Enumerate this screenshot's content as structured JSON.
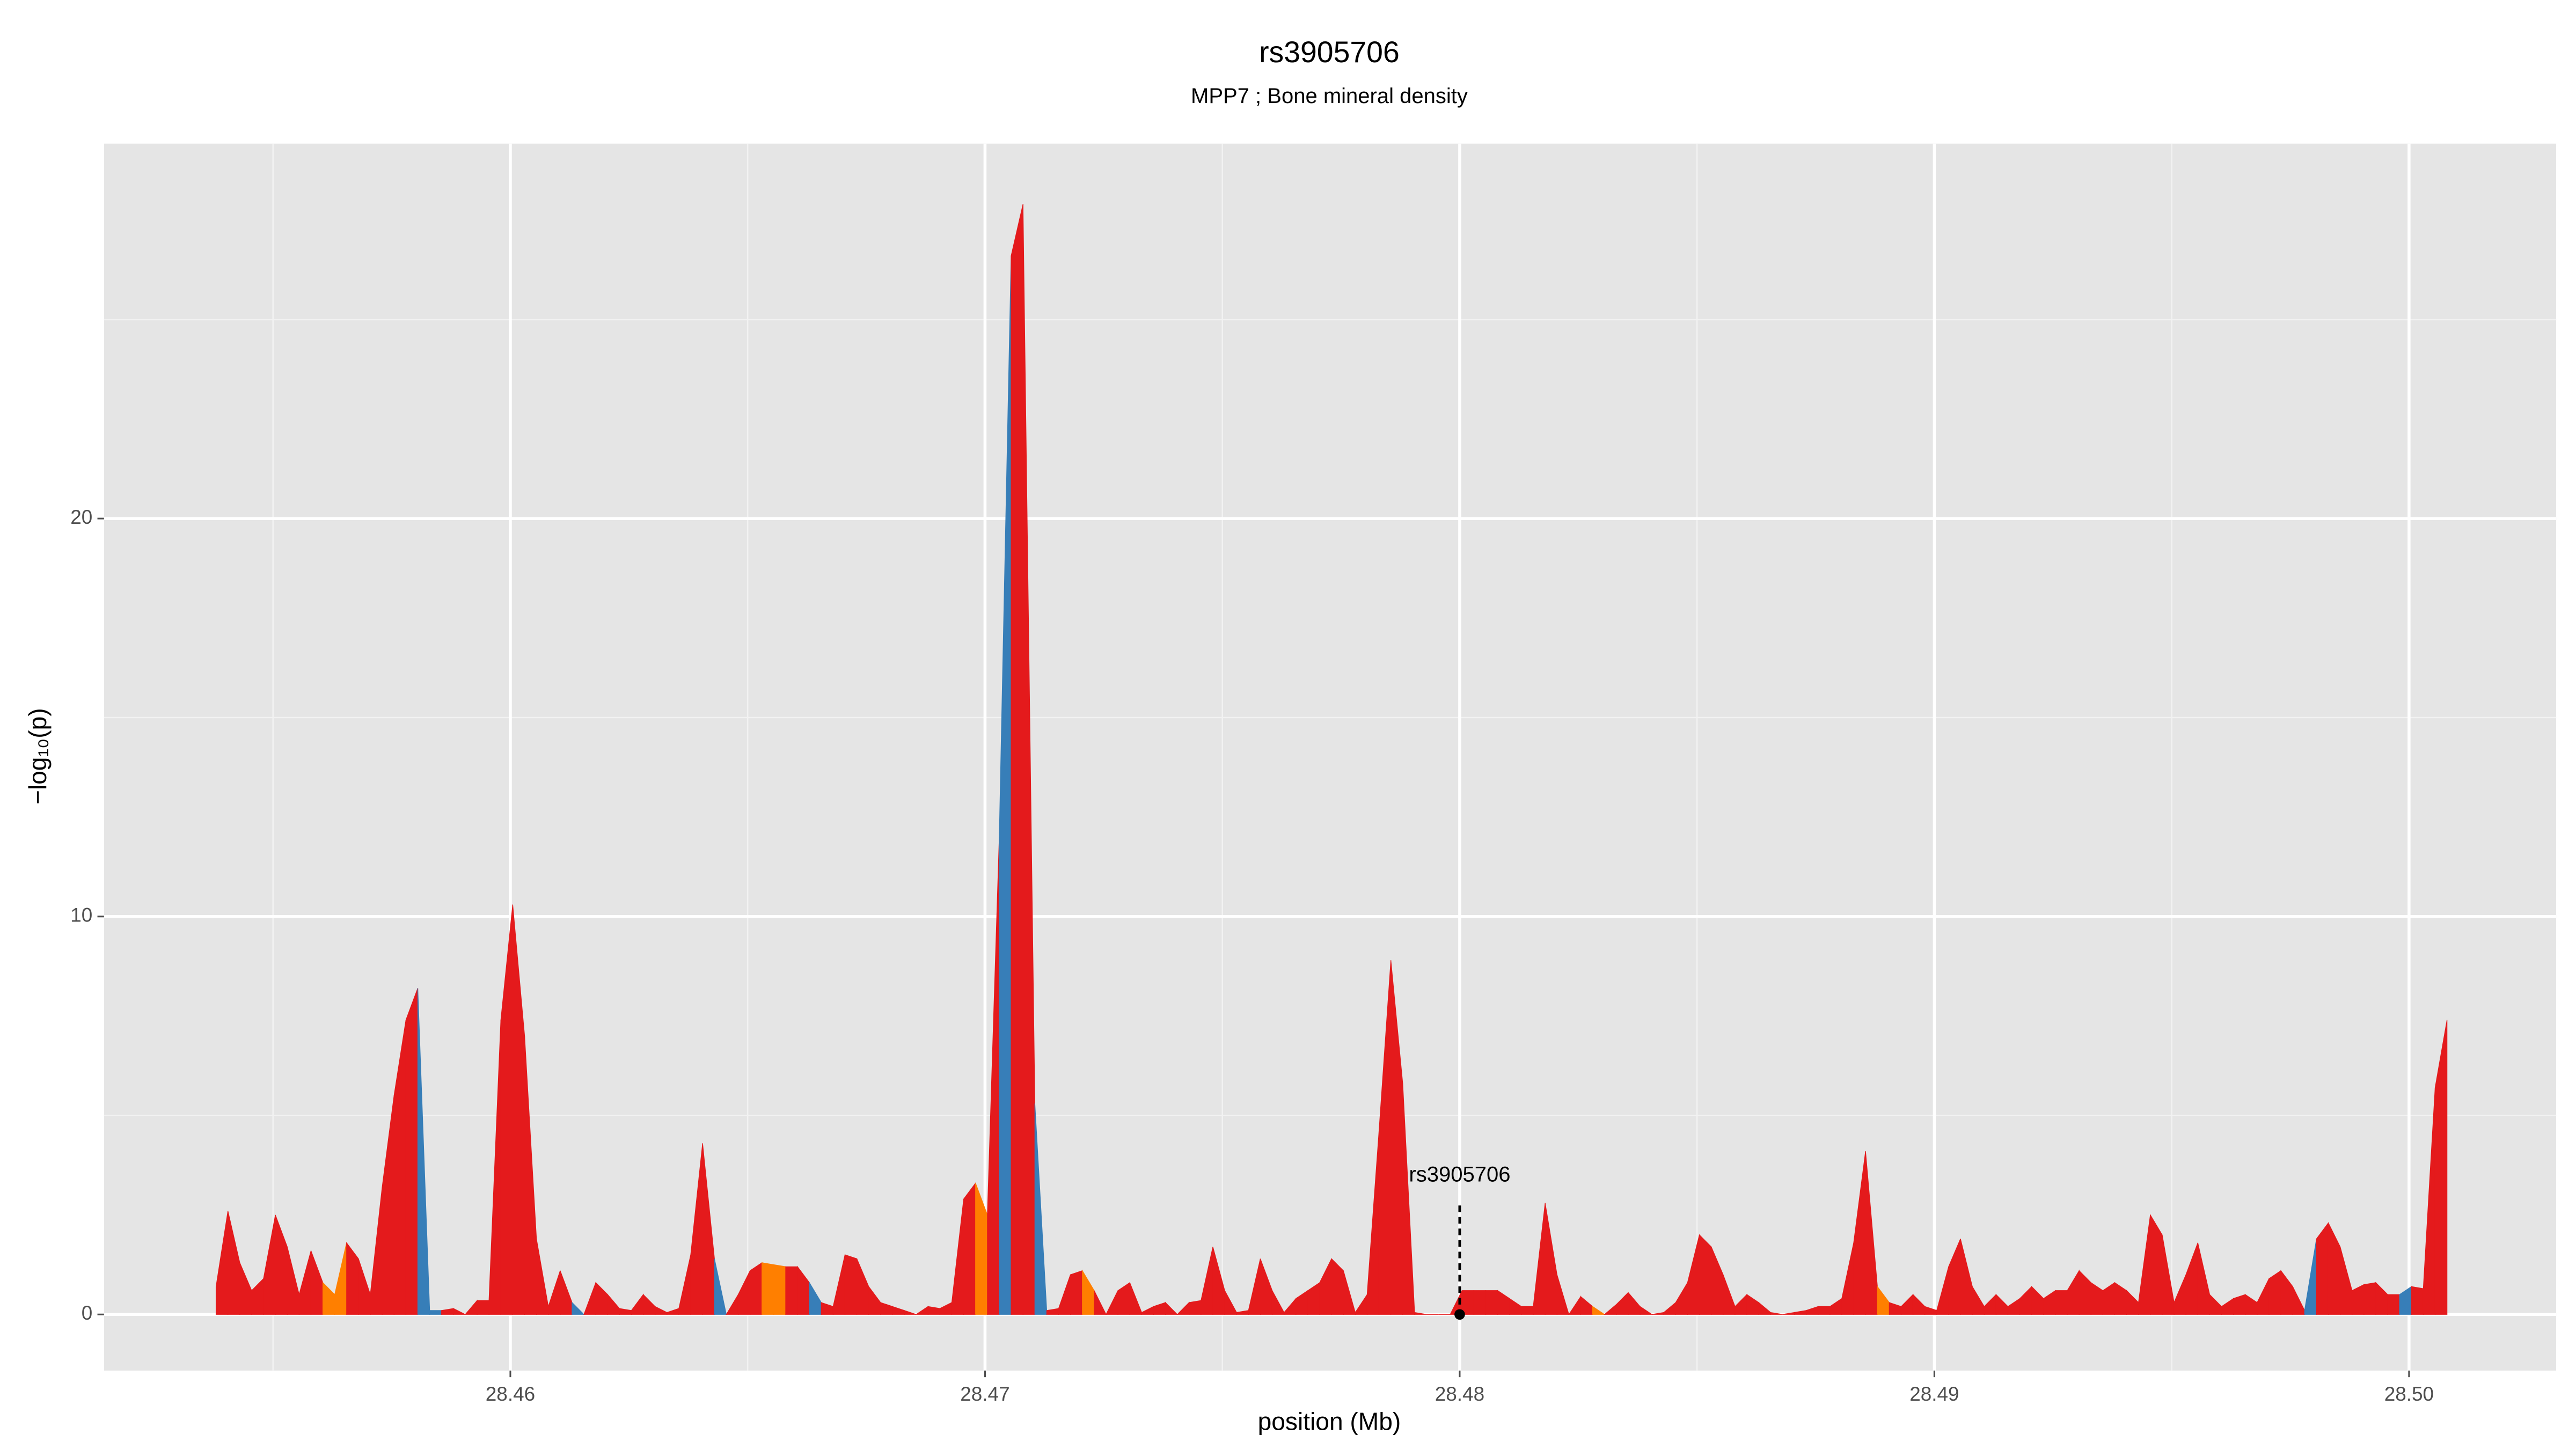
{
  "chart_data": {
    "type": "area",
    "title": "rs3905706",
    "subtitle": "MPP7 ; Bone mineral density",
    "x_label": "position (Mb)",
    "y_label": "−log₁₀(p)",
    "xlim": [
      28.45144,
      28.5031
    ],
    "ylim": [
      -1.41,
      29.42
    ],
    "xticks": [
      28.46,
      28.47,
      28.48,
      28.49,
      {
        "value": 28.5,
        "label": "28.50"
      }
    ],
    "yticks": [
      0,
      10,
      20
    ],
    "xminor": [
      28.455,
      28.465,
      28.475,
      28.485,
      28.495
    ],
    "yminor": [
      5,
      15,
      25
    ],
    "grid": true,
    "annotation": {
      "text": "rs3905706",
      "x": 28.48,
      "y": 0
    },
    "x": [
      28.4538,
      28.45405,
      28.4543,
      28.45455,
      28.4548,
      28.45505,
      28.4553,
      28.45555,
      28.4558,
      28.45605,
      28.4563,
      28.45655,
      28.4568,
      28.45705,
      28.4573,
      28.45755,
      28.4578,
      28.45805,
      28.4583,
      28.45855,
      28.4588,
      28.45905,
      28.4593,
      28.45955,
      28.4598,
      28.46005,
      28.4603,
      28.46055,
      28.4608,
      28.46105,
      28.4613,
      28.46155,
      28.4618,
      28.46205,
      28.4623,
      28.46255,
      28.4628,
      28.46305,
      28.4633,
      28.46355,
      28.4638,
      28.46405,
      28.4643,
      28.46455,
      28.4648,
      28.46505,
      28.4653,
      28.46555,
      28.4658,
      28.46605,
      28.4663,
      28.46655,
      28.4668,
      28.46705,
      28.4673,
      28.46755,
      28.4678,
      28.46805,
      28.4683,
      28.46855,
      28.4688,
      28.46905,
      28.4693,
      28.46955,
      28.4698,
      28.47005,
      28.4703,
      28.47055,
      28.4708,
      28.47105,
      28.4713,
      28.47155,
      28.4718,
      28.47205,
      28.4723,
      28.47255,
      28.4728,
      28.47305,
      28.4733,
      28.47355,
      28.4738,
      28.47405,
      28.4743,
      28.47455,
      28.4748,
      28.47505,
      28.4753,
      28.47555,
      28.4758,
      28.47605,
      28.4763,
      28.47655,
      28.4768,
      28.47705,
      28.4773,
      28.47755,
      28.4778,
      28.47805,
      28.4783,
      28.47855,
      28.4788,
      28.47905,
      28.4793,
      28.47955,
      28.4798,
      28.48005,
      28.4803,
      28.48055,
      28.4808,
      28.48105,
      28.4813,
      28.48155,
      28.4818,
      28.48205,
      28.4823,
      28.48255,
      28.4828,
      28.48305,
      28.4833,
      28.48355,
      28.4838,
      28.48405,
      28.4843,
      28.48455,
      28.4848,
      28.48505,
      28.4853,
      28.48555,
      28.4858,
      28.48605,
      28.4863,
      28.48655,
      28.4868,
      28.48705,
      28.4873,
      28.48755,
      28.4878,
      28.48805,
      28.4883,
      28.48855,
      28.4888,
      28.48905,
      28.4893,
      28.48955,
      28.4898,
      28.49005,
      28.4903,
      28.49055,
      28.4908,
      28.49105,
      28.4913,
      28.49155,
      28.4918,
      28.49205,
      28.4923,
      28.49255,
      28.4928,
      28.49305,
      28.4933,
      28.49355,
      28.4938,
      28.49405,
      28.4943,
      28.49455,
      28.4948,
      28.49505,
      28.4953,
      28.49555,
      28.4958,
      28.49605,
      28.4963,
      28.49655,
      28.4968,
      28.49705,
      28.4973,
      28.49755,
      28.4978,
      28.49805,
      28.4983,
      28.49855,
      28.4988,
      28.49905,
      28.4993,
      28.49955,
      28.4998,
      28.50005,
      28.5003,
      28.50055,
      28.5008
    ],
    "values": [
      0.7,
      2.6,
      1.3,
      0.6,
      0.9,
      2.5,
      1.7,
      0.5,
      1.6,
      0.8,
      0.5,
      1.8,
      1.4,
      0.5,
      3.2,
      5.5,
      7.4,
      8.2,
      0.1,
      0.1,
      0.15,
      0.0,
      0.35,
      0.35,
      7.4,
      10.3,
      7.0,
      1.9,
      0.2,
      1.1,
      0.3,
      0.0,
      0.8,
      0.5,
      0.15,
      0.1,
      0.5,
      0.2,
      0.05,
      0.15,
      1.5,
      4.3,
      1.4,
      0.0,
      0.5,
      1.1,
      1.3,
      1.25,
      1.2,
      1.2,
      0.8,
      0.3,
      0.2,
      1.5,
      1.4,
      0.7,
      0.3,
      0.2,
      0.1,
      0.0,
      0.2,
      0.15,
      0.3,
      2.9,
      3.3,
      2.5,
      12,
      26.6,
      27.9,
      5.3,
      0.1,
      0.15,
      1.0,
      1.1,
      0.6,
      0.0,
      0.6,
      0.8,
      0.05,
      0.2,
      0.3,
      0.0,
      0.3,
      0.35,
      1.7,
      0.6,
      0.05,
      0.1,
      1.4,
      0.6,
      0.05,
      0.4,
      0.6,
      0.8,
      1.4,
      1.1,
      0.05,
      0.5,
      4.6,
      8.9,
      5.8,
      0.05,
      0.0,
      0.0,
      0.0,
      0.6,
      0.6,
      0.6,
      0.6,
      0.4,
      0.2,
      0.2,
      2.8,
      1.0,
      0.0,
      0.45,
      0.2,
      0.0,
      0.25,
      0.55,
      0.2,
      0.0,
      0.05,
      0.3,
      0.8,
      2.0,
      1.7,
      1.0,
      0.2,
      0.5,
      0.3,
      0.05,
      0.0,
      0.05,
      0.1,
      0.2,
      0.2,
      0.4,
      1.8,
      4.1,
      0.7,
      0.3,
      0.2,
      0.5,
      0.2,
      0.1,
      1.2,
      1.9,
      0.7,
      0.2,
      0.5,
      0.2,
      0.4,
      0.7,
      0.4,
      0.6,
      0.6,
      1.1,
      0.8,
      0.6,
      0.8,
      0.6,
      0.3,
      2.5,
      2.0,
      0.3,
      1.0,
      1.8,
      0.5,
      0.2,
      0.4,
      0.5,
      0.3,
      0.9,
      1.1,
      0.7,
      0.1,
      1.9,
      2.3,
      1.7,
      0.6,
      0.75,
      0.8,
      0.5,
      0.5,
      0.7,
      0.65,
      5.7,
      7.4
    ],
    "colors": [
      "#e41a1c",
      "#e41a1c",
      "#e41a1c",
      "#e41a1c",
      "#e41a1c",
      "#e41a1c",
      "#e41a1c",
      "#e41a1c",
      "#e41a1c",
      "#ff7f00",
      "#ff7f00",
      "#e41a1c",
      "#e41a1c",
      "#e41a1c",
      "#e41a1c",
      "#e41a1c",
      "#e41a1c",
      "#377eb8",
      "#377eb8",
      "#e41a1c",
      "#e41a1c",
      "#e41a1c",
      "#e41a1c",
      "#e41a1c",
      "#e41a1c",
      "#e41a1c",
      "#e41a1c",
      "#e41a1c",
      "#e41a1c",
      "#e41a1c",
      "#377eb8",
      "#e41a1c",
      "#e41a1c",
      "#e41a1c",
      "#e41a1c",
      "#e41a1c",
      "#e41a1c",
      "#e41a1c",
      "#e41a1c",
      "#e41a1c",
      "#e41a1c",
      "#e41a1c",
      "#377eb8",
      "#e41a1c",
      "#e41a1c",
      "#e41a1c",
      "#ff7f00",
      "#ff7f00",
      "#e41a1c",
      "#e41a1c",
      "#377eb8",
      "#e41a1c",
      "#e41a1c",
      "#e41a1c",
      "#e41a1c",
      "#e41a1c",
      "#e41a1c",
      "#e41a1c",
      "#e41a1c",
      "#e41a1c",
      "#e41a1c",
      "#e41a1c",
      "#e41a1c",
      "#e41a1c",
      "#ff7f00",
      "#e41a1c",
      "#377eb8",
      "#e41a1c",
      "#e41a1c",
      "#377eb8",
      "#e41a1c",
      "#e41a1c",
      "#e41a1c",
      "#ff7f00",
      "#e41a1c",
      "#e41a1c",
      "#e41a1c",
      "#e41a1c",
      "#e41a1c",
      "#e41a1c",
      "#e41a1c",
      "#e41a1c",
      "#e41a1c",
      "#e41a1c",
      "#e41a1c",
      "#e41a1c",
      "#e41a1c",
      "#e41a1c",
      "#e41a1c",
      "#e41a1c",
      "#e41a1c",
      "#e41a1c",
      "#e41a1c",
      "#e41a1c",
      "#e41a1c",
      "#e41a1c",
      "#e41a1c",
      "#e41a1c",
      "#e41a1c",
      "#e41a1c",
      "#e41a1c",
      "#e41a1c",
      "#e41a1c",
      "#e41a1c",
      "#e41a1c",
      "#e41a1c",
      "#e41a1c",
      "#e41a1c",
      "#e41a1c",
      "#e41a1c",
      "#e41a1c",
      "#e41a1c",
      "#e41a1c",
      "#e41a1c",
      "#e41a1c",
      "#e41a1c",
      "#ff7f00",
      "#e41a1c",
      "#e41a1c",
      "#e41a1c",
      "#e41a1c",
      "#e41a1c",
      "#e41a1c",
      "#e41a1c",
      "#e41a1c",
      "#e41a1c",
      "#e41a1c",
      "#e41a1c",
      "#e41a1c",
      "#e41a1c",
      "#e41a1c",
      "#e41a1c",
      "#e41a1c",
      "#e41a1c",
      "#e41a1c",
      "#e41a1c",
      "#e41a1c",
      "#e41a1c",
      "#e41a1c",
      "#e41a1c",
      "#ff7f00",
      "#e41a1c",
      "#e41a1c",
      "#e41a1c",
      "#e41a1c",
      "#e41a1c",
      "#e41a1c",
      "#e41a1c",
      "#e41a1c",
      "#e41a1c",
      "#e41a1c",
      "#e41a1c",
      "#e41a1c",
      "#e41a1c",
      "#e41a1c",
      "#e41a1c",
      "#e41a1c",
      "#e41a1c",
      "#e41a1c",
      "#e41a1c",
      "#e41a1c",
      "#e41a1c",
      "#e41a1c",
      "#e41a1c",
      "#e41a1c",
      "#e41a1c",
      "#e41a1c",
      "#e41a1c",
      "#e41a1c",
      "#e41a1c",
      "#e41a1c",
      "#e41a1c",
      "#e41a1c",
      "#e41a1c",
      "#e41a1c",
      "#e41a1c",
      "#377eb8",
      "#e41a1c",
      "#e41a1c",
      "#e41a1c",
      "#e41a1c",
      "#e41a1c",
      "#e41a1c",
      "#e41a1c",
      "#377eb8",
      "#e41a1c",
      "#e41a1c",
      "#e41a1c",
      "#e41a1c"
    ]
  }
}
